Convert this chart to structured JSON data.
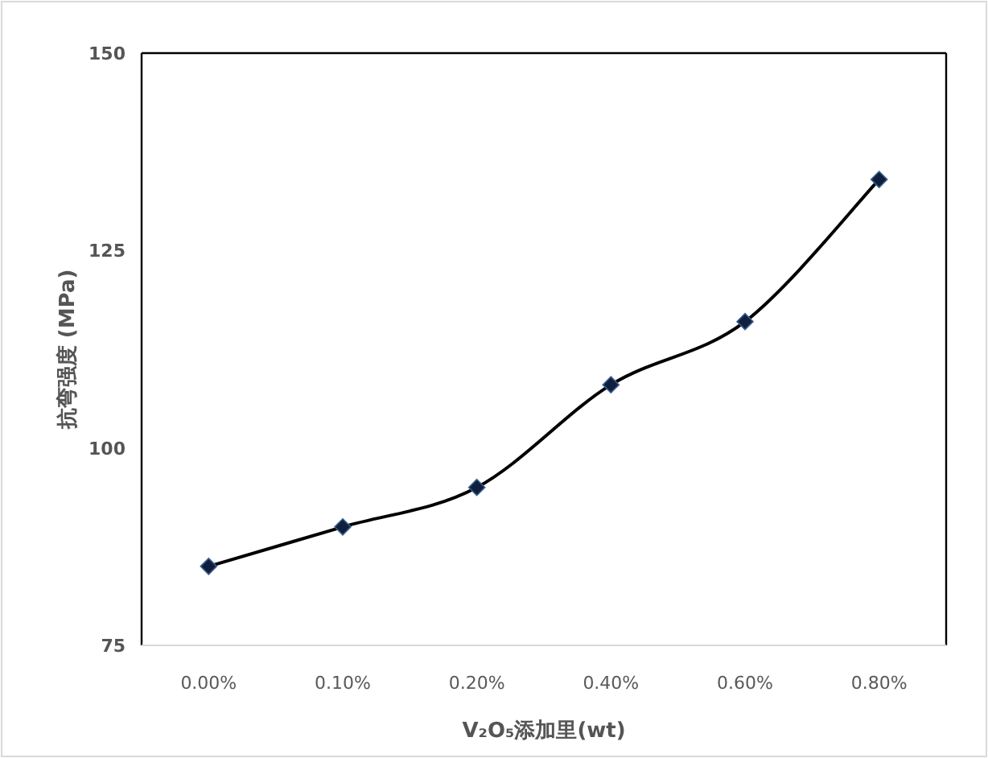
{
  "chart_data": {
    "type": "line",
    "xlabel": "V₂O₅添加里(wt)",
    "ylabel": "抗弯强度 (MPa)",
    "categories": [
      "0.00%",
      "0.10%",
      "0.20%",
      "0.40%",
      "0.60%",
      "0.80%"
    ],
    "series": [
      {
        "color": "#0f1f3d",
        "values": [
          85,
          90,
          95,
          108,
          116,
          134
        ]
      }
    ],
    "ylim": [
      75,
      150
    ],
    "yticks": [
      75,
      100,
      125,
      150
    ],
    "marker": "diamond",
    "line_style": "solid",
    "grid": false
  }
}
